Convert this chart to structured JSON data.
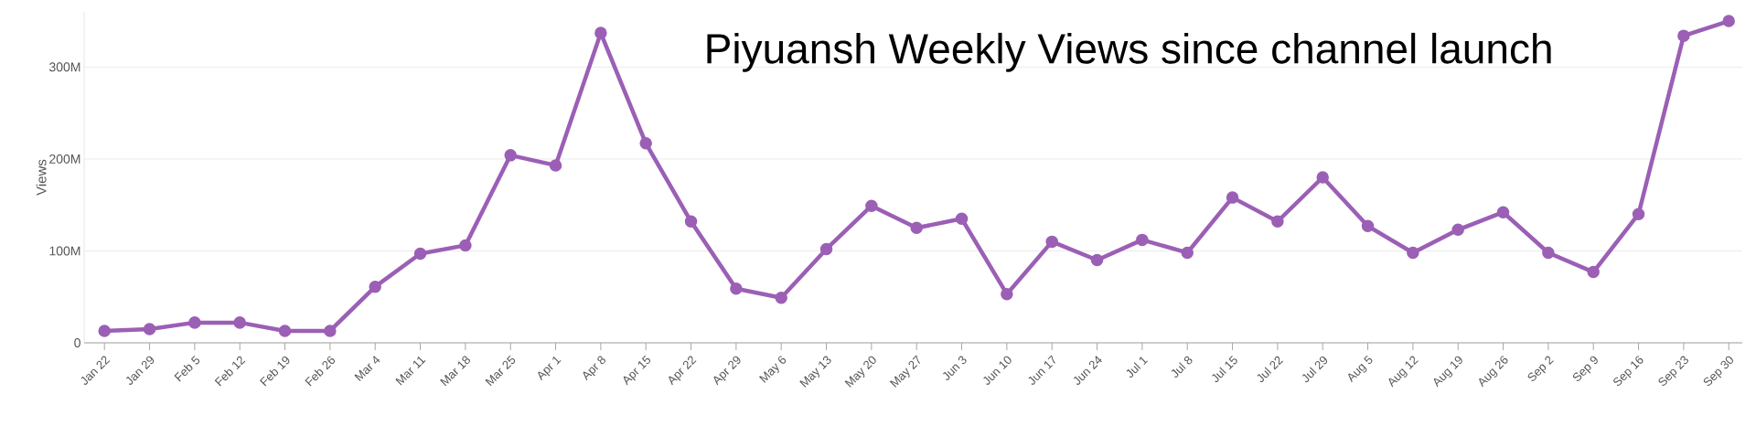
{
  "chart_data": {
    "type": "line",
    "title": "Piyuansh Weekly Views since channel launch",
    "ylabel": "Views",
    "categories": [
      "Jan 22",
      "Jan 29",
      "Feb 5",
      "Feb 12",
      "Feb 19",
      "Feb 26",
      "Mar 4",
      "Mar 11",
      "Mar 18",
      "Mar 25",
      "Apr 1",
      "Apr 8",
      "Apr 15",
      "Apr 22",
      "Apr 29",
      "May 6",
      "May 13",
      "May 20",
      "May 27",
      "Jun 3",
      "Jun 10",
      "Jun 17",
      "Jun 24",
      "Jul 1",
      "Jul 8",
      "Jul 15",
      "Jul 22",
      "Jul 29",
      "Aug 5",
      "Aug 12",
      "Aug 19",
      "Aug 26",
      "Sep 2",
      "Sep 9",
      "Sep 16",
      "Sep 23",
      "Sep 30"
    ],
    "values": [
      13,
      15,
      22,
      22,
      13,
      13,
      61,
      97,
      106,
      204,
      193,
      337,
      217,
      132,
      59,
      49,
      102,
      149,
      125,
      135,
      53,
      110,
      90,
      112,
      98,
      158,
      132,
      180,
      127,
      98,
      123,
      142,
      98,
      77,
      140,
      334,
      350
    ],
    "color": "#9b5fb5",
    "ylim": [
      0,
      360
    ],
    "yticks": [
      {
        "value": 0,
        "label": "0"
      },
      {
        "value": 100,
        "label": "100M"
      },
      {
        "value": 200,
        "label": "200M"
      },
      {
        "value": 300,
        "label": "300M"
      }
    ],
    "grid": "y",
    "marker": "circle",
    "line_style": "solid"
  }
}
